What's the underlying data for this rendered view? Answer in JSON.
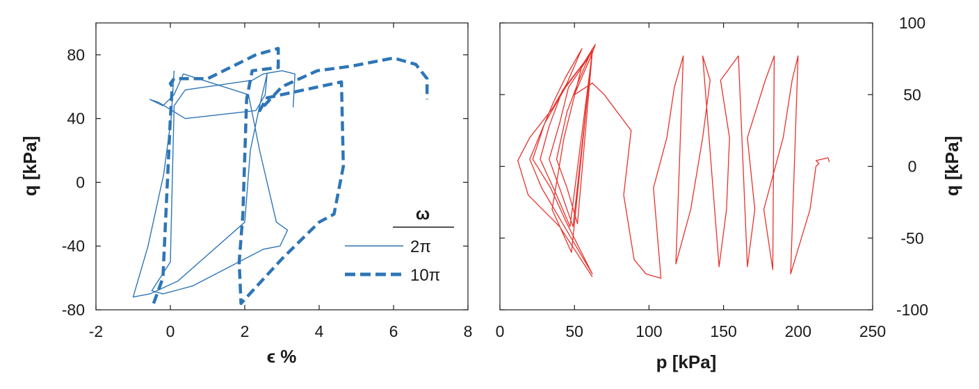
{
  "chart_data": [
    {
      "type": "line",
      "xlabel": "ϵ %",
      "ylabel": "q [kPa]",
      "xlim": [
        -2,
        8
      ],
      "ylim": [
        -80,
        100
      ],
      "xticks": [
        "-2",
        "0",
        "2",
        "4",
        "6",
        "8"
      ],
      "yticks": [
        "-80",
        "-40",
        "0",
        "40",
        "80"
      ],
      "legend": {
        "title": "ω",
        "placement": "lower-right",
        "entries": [
          "2π",
          "10π"
        ]
      },
      "series": [
        {
          "name": "2π",
          "style": "solid",
          "color": "#2e75b6",
          "x": [
            0.1,
            0.02,
            -0.18,
            -0.6,
            -1.0,
            -0.55,
            0.2,
            2.0,
            2.15,
            2.4,
            2.6,
            2.55,
            2.3,
            0.4,
            -0.3,
            -0.55,
            -0.2,
            0.1,
            0.35,
            2.1,
            2.4,
            2.85,
            3.15,
            2.95,
            2.5,
            0.6,
            -0.2,
            -0.5,
            0.0,
            0.1,
            0.4,
            2.2,
            2.5,
            3.0,
            3.35,
            3.3
          ],
          "y": [
            70,
            40,
            5,
            -40,
            -72,
            -70,
            -62,
            -25,
            20,
            48,
            68,
            55,
            45,
            40,
            50,
            52,
            48,
            55,
            68,
            55,
            20,
            -25,
            -30,
            -40,
            -42,
            -65,
            -70,
            -68,
            -50,
            48,
            58,
            64,
            68,
            70,
            68,
            47
          ]
        },
        {
          "name": "10π",
          "style": "dashed",
          "color": "#2e75b6",
          "x": [
            -0.45,
            -0.2,
            0.0,
            0.05,
            0.0,
            0.1,
            0.5,
            1.0,
            2.3,
            2.9,
            2.9,
            2.2,
            2.05,
            1.95,
            1.85,
            1.9,
            3.0,
            4.0,
            4.4,
            4.65,
            4.6,
            2.6,
            2.4,
            3.0,
            3.95,
            4.6,
            4.9,
            6.0,
            6.6,
            6.9,
            6.9
          ],
          "y": [
            -76,
            -60,
            40,
            60,
            62,
            65,
            65,
            65,
            80,
            84,
            72,
            70,
            52,
            -20,
            -50,
            -76,
            -48,
            -25,
            -20,
            10,
            63,
            53,
            45,
            60,
            70,
            72,
            73,
            78,
            74,
            65,
            52
          ]
        }
      ]
    },
    {
      "type": "line",
      "xlabel": "p [kPa]",
      "ylabel": "q [kPa]",
      "xlim": [
        0,
        250
      ],
      "ylim": [
        -100,
        100
      ],
      "xticks": [
        "0",
        "50",
        "100",
        "150",
        "200",
        "250"
      ],
      "yticks": [
        "-100",
        "-50",
        "0",
        "50",
        "100"
      ],
      "series": [
        {
          "style": "solid",
          "color": "#e8302a",
          "x": [
            62,
            40,
            19,
            12,
            20,
            35,
            45,
            55,
            44,
            36,
            20,
            28,
            45,
            62,
            45,
            34,
            22,
            30,
            44,
            62,
            47,
            38,
            27,
            33,
            42,
            62,
            49,
            41,
            33,
            40,
            46,
            62,
            52,
            45,
            38,
            45,
            53,
            62,
            48,
            35,
            43,
            55,
            64,
            62,
            50,
            62,
            70,
            88,
            83,
            90,
            98,
            108,
            103,
            112,
            117,
            123,
            118,
            128,
            136,
            141,
            136,
            147,
            152,
            154,
            148,
            160,
            166,
            171,
            166,
            178,
            184,
            183,
            177,
            190,
            196,
            200,
            195,
            208,
            212,
            214,
            212,
            220,
            221
          ],
          "y": [
            -77,
            -42,
            -20,
            4,
            20,
            40,
            58,
            82,
            62,
            45,
            5,
            -15,
            -45,
            -75,
            -40,
            -15,
            5,
            30,
            55,
            80,
            -42,
            -20,
            5,
            28,
            53,
            80,
            -42,
            -18,
            5,
            30,
            55,
            80,
            -40,
            -15,
            5,
            38,
            60,
            82,
            -60,
            -30,
            20,
            70,
            85,
            79,
            50,
            58,
            50,
            25,
            -20,
            -65,
            -75,
            -78,
            -15,
            20,
            55,
            77,
            -68,
            -30,
            20,
            60,
            77,
            -70,
            -30,
            20,
            60,
            77,
            -70,
            -30,
            20,
            60,
            77,
            -72,
            -30,
            20,
            60,
            77,
            -75,
            -30,
            0,
            2,
            4,
            6,
            3
          ]
        }
      ]
    }
  ]
}
